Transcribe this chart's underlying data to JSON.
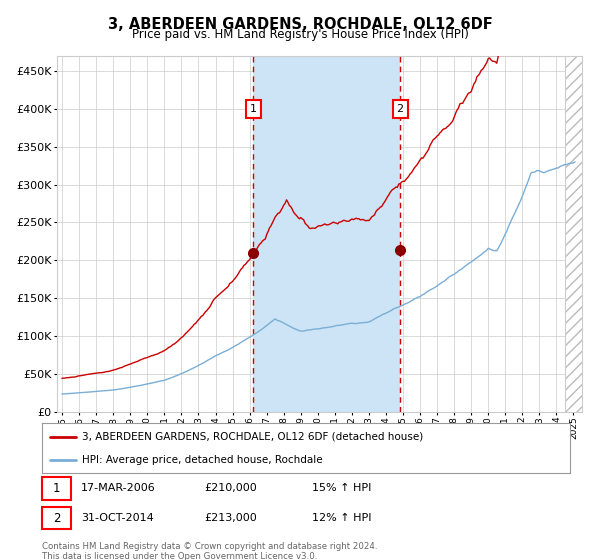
{
  "title": "3, ABERDEEN GARDENS, ROCHDALE, OL12 6DF",
  "subtitle": "Price paid vs. HM Land Registry's House Price Index (HPI)",
  "footnote": "Contains HM Land Registry data © Crown copyright and database right 2024.\nThis data is licensed under the Open Government Licence v3.0.",
  "legend_line1": "3, ABERDEEN GARDENS, ROCHDALE, OL12 6DF (detached house)",
  "legend_line2": "HPI: Average price, detached house, Rochdale",
  "sale1_label": "17-MAR-2006",
  "sale1_price": "£210,000",
  "sale1_hpi": "15% ↑ HPI",
  "sale2_label": "31-OCT-2014",
  "sale2_price": "£213,000",
  "sale2_hpi": "12% ↑ HPI",
  "sale1_year": 2006.21,
  "sale2_year": 2014.83,
  "hpi_color": "#7aaed6",
  "price_color": "#cc0000",
  "dot_color": "#8b0000",
  "shade_color": "#cce4f5",
  "dashed_color": "#cc0000",
  "grid_color": "#cccccc",
  "background_color": "#ffffff",
  "hatch_color": "#bbbbbb",
  "ylim": [
    0,
    470000
  ],
  "xlim_start": 1994.7,
  "xlim_end": 2025.5
}
